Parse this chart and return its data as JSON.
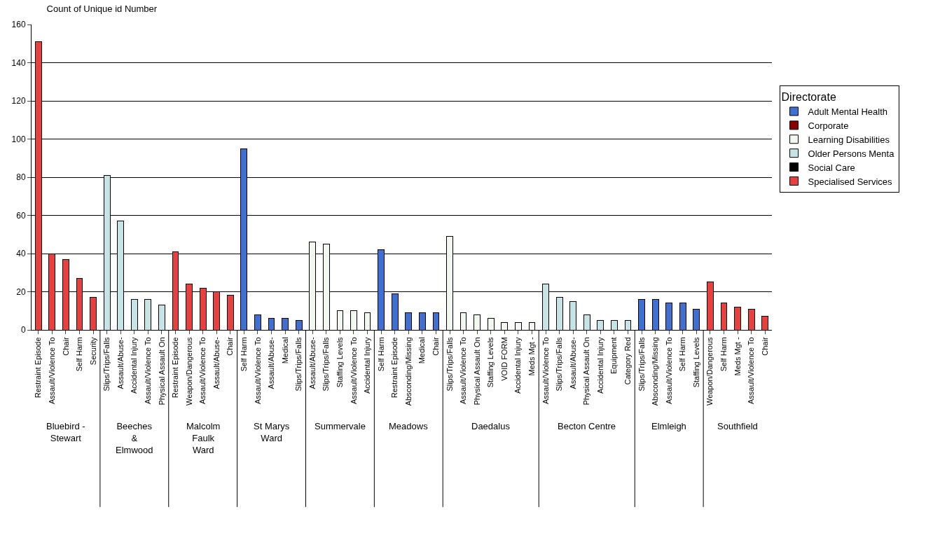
{
  "chart_data": {
    "type": "bar",
    "title": "Count of Unique id Number",
    "legend_title": "Directorate",
    "stacked": true,
    "categories": [
      "Restraint Episode",
      "Assault/Violence To",
      "Chair",
      "Self Harm",
      "Security",
      "Slips/Trips/Falls",
      "Assault/Abuse-",
      "Accidental Injury",
      "Assault/Violence To",
      "Physical Assault On",
      "Restraint Episode",
      "Weapon/Dangerous",
      "Assault/Violence To",
      "Assault/Abuse-",
      "Chair",
      "Self Harm",
      "Assault/Violence To",
      "Assault/Abuse-",
      "Medical",
      "Slips/Trips/Falls",
      "Assault/Abuse-",
      "Slips/Trips/Falls",
      "Staffing Levels",
      "Assault/Violence To",
      "Accidental Injury",
      "Self Harm",
      "Restraint Episode",
      "Absconding/Missing",
      "Medical",
      "Chair",
      "Slips/Trips/Falls",
      "Assault/Violence To",
      "Physical Assault On",
      "Staffing Levels",
      "VOID FORM",
      "Accidental Injury",
      "Meds Mgt -",
      "Assault/Violence To",
      "Slips/Trips/Falls",
      "Assault/Abuse-",
      "Physical Assault On",
      "Accidental Injury",
      "Equipment",
      "Category Red",
      "Slips/Trips/Falls",
      "Absconding/Missing",
      "Assault/Violence To",
      "Self Harm",
      "Staffing Levels",
      "Weapon/Dangerous",
      "Self Harm",
      "Meds Mgt -",
      "Assault/Violence To",
      "Chair"
    ],
    "series": [
      {
        "name": "Specialised Services",
        "color": "#e8403f",
        "values": [
          151,
          40,
          37,
          27,
          17,
          null,
          null,
          null,
          null,
          null,
          41,
          24,
          22,
          20,
          18,
          null,
          null,
          null,
          null,
          null,
          null,
          null,
          null,
          null,
          null,
          null,
          null,
          null,
          null,
          null,
          null,
          null,
          null,
          null,
          null,
          null,
          null,
          null,
          null,
          null,
          null,
          null,
          null,
          null,
          null,
          null,
          null,
          null,
          null,
          25,
          14,
          12,
          11,
          7
        ]
      },
      {
        "name": "Social Care",
        "color": "#000000",
        "values": [
          null,
          null,
          null,
          null,
          null,
          null,
          null,
          null,
          null,
          null,
          null,
          null,
          null,
          null,
          null,
          null,
          null,
          null,
          null,
          null,
          null,
          null,
          null,
          null,
          null,
          null,
          null,
          null,
          null,
          null,
          null,
          null,
          null,
          null,
          null,
          null,
          null,
          null,
          null,
          null,
          null,
          null,
          null,
          null,
          null,
          null,
          null,
          null,
          null,
          null,
          null,
          null,
          null,
          null
        ]
      },
      {
        "name": "Older Persons Menta",
        "color": "#c6e4e6",
        "values": [
          null,
          null,
          null,
          null,
          null,
          81,
          57,
          16,
          16,
          13,
          null,
          null,
          null,
          null,
          null,
          null,
          null,
          null,
          null,
          null,
          null,
          null,
          null,
          null,
          null,
          null,
          null,
          null,
          null,
          null,
          null,
          null,
          null,
          null,
          null,
          null,
          null,
          24,
          17,
          15,
          8,
          5,
          5,
          5,
          null,
          null,
          null,
          null,
          null,
          null,
          null,
          null,
          null,
          null
        ]
      },
      {
        "name": "Learning Disabilities",
        "color": "#f2f7f0",
        "values": [
          null,
          null,
          null,
          null,
          null,
          null,
          null,
          null,
          null,
          null,
          null,
          null,
          null,
          null,
          null,
          null,
          null,
          null,
          null,
          null,
          46,
          45,
          10,
          10,
          9,
          null,
          null,
          null,
          null,
          null,
          49,
          9,
          8,
          6,
          4,
          4,
          4,
          null,
          null,
          null,
          null,
          null,
          null,
          null,
          null,
          null,
          null,
          null,
          null,
          null,
          null,
          null,
          null,
          null
        ]
      },
      {
        "name": "Corporate",
        "color": "#8b0000",
        "values": [
          null,
          null,
          null,
          null,
          null,
          null,
          null,
          null,
          null,
          null,
          null,
          null,
          null,
          null,
          null,
          null,
          null,
          null,
          null,
          null,
          null,
          null,
          null,
          null,
          null,
          null,
          null,
          null,
          null,
          null,
          null,
          null,
          null,
          null,
          null,
          null,
          null,
          null,
          null,
          null,
          null,
          null,
          null,
          null,
          null,
          null,
          null,
          null,
          null,
          null,
          null,
          null,
          null,
          null
        ]
      },
      {
        "name": "Adult Mental Health",
        "color": "#3f6fd0",
        "values": [
          null,
          null,
          null,
          null,
          null,
          null,
          null,
          null,
          null,
          null,
          null,
          null,
          null,
          null,
          null,
          95,
          8,
          6,
          6,
          5,
          null,
          null,
          null,
          null,
          null,
          42,
          19,
          9,
          9,
          9,
          null,
          null,
          null,
          null,
          null,
          null,
          null,
          null,
          null,
          null,
          null,
          null,
          null,
          null,
          16,
          16,
          14,
          14,
          11,
          null,
          null,
          null,
          null,
          null
        ]
      }
    ],
    "annotations": [
      "Bluebird -\nStewart",
      "Beeches\n&\nElmwood",
      "Malcolm\nFaulk\nWard",
      "St Marys\nWard",
      "Summervale",
      "Meadows",
      "Daedalus",
      "Becton Centre",
      "Elmleigh",
      "Southfield"
    ],
    "ylim": [
      0,
      160
    ],
    "yticks": [
      0,
      20,
      40,
      60,
      80,
      100,
      120,
      140,
      160
    ],
    "grid": "y",
    "legend": "right"
  }
}
